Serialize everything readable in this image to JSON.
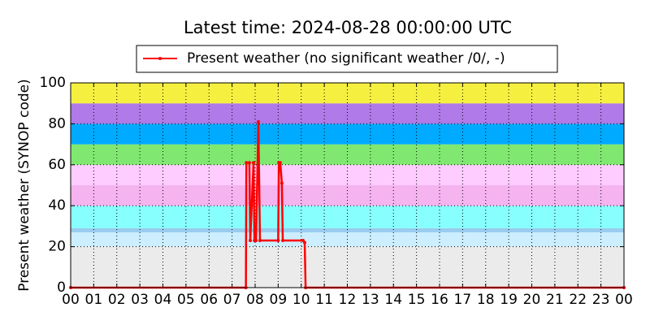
{
  "chart_data": {
    "type": "line",
    "title": "Latest time: 2024-08-28 00:00:00 UTC",
    "y_label": "Present weather (SYNOP code)",
    "x": [
      0,
      7.6,
      7.62,
      7.75,
      7.79,
      7.93,
      7.97,
      8.04,
      8.14,
      8.21,
      9.0,
      9.03,
      9.09,
      9.16,
      9.2,
      10.08,
      10.15,
      10.19,
      24
    ],
    "series": [
      {
        "name": "Present weather (no significant weather /0/, -)",
        "color": "#ff0000",
        "values": [
          0,
          0,
          61,
          61,
          23,
          61,
          23,
          23,
          81,
          23,
          23,
          61,
          61,
          51,
          23,
          23,
          22,
          0,
          0
        ]
      }
    ],
    "xlim": [
      0,
      24
    ],
    "xticks": [
      {
        "value": 0,
        "label": "00"
      },
      {
        "value": 1,
        "label": "01"
      },
      {
        "value": 2,
        "label": "02"
      },
      {
        "value": 3,
        "label": "03"
      },
      {
        "value": 4,
        "label": "04"
      },
      {
        "value": 5,
        "label": "05"
      },
      {
        "value": 6,
        "label": "06"
      },
      {
        "value": 7,
        "label": "07"
      },
      {
        "value": 8,
        "label": "08"
      },
      {
        "value": 9,
        "label": "09"
      },
      {
        "value": 10,
        "label": "10"
      },
      {
        "value": 11,
        "label": "11"
      },
      {
        "value": 12,
        "label": "12"
      },
      {
        "value": 13,
        "label": "13"
      },
      {
        "value": 14,
        "label": "14"
      },
      {
        "value": 15,
        "label": "15"
      },
      {
        "value": 16,
        "label": "16"
      },
      {
        "value": 17,
        "label": "17"
      },
      {
        "value": 18,
        "label": "18"
      },
      {
        "value": 19,
        "label": "19"
      },
      {
        "value": 20,
        "label": "20"
      },
      {
        "value": 21,
        "label": "21"
      },
      {
        "value": 22,
        "label": "22"
      },
      {
        "value": 23,
        "label": "23"
      },
      {
        "value": 24,
        "label": "00"
      }
    ],
    "ylim": [
      0,
      100
    ],
    "yticks": [
      0,
      20,
      40,
      60,
      80,
      100
    ],
    "grid": true,
    "bands": [
      {
        "from": 0,
        "to": 20,
        "color": "#ebebeb"
      },
      {
        "from": 20,
        "to": 27,
        "color": "#cceeff"
      },
      {
        "from": 27,
        "to": 29,
        "color": "#99ccee"
      },
      {
        "from": 29,
        "to": 40,
        "color": "#88ffff"
      },
      {
        "from": 40,
        "to": 50,
        "color": "#f5b3f0"
      },
      {
        "from": 50,
        "to": 60,
        "color": "#ffccff"
      },
      {
        "from": 60,
        "to": 70,
        "color": "#80e870"
      },
      {
        "from": 70,
        "to": 80,
        "color": "#00aaff"
      },
      {
        "from": 80,
        "to": 90,
        "color": "#b07ae8"
      },
      {
        "from": 90,
        "to": 100,
        "color": "#f5f040"
      }
    ]
  }
}
